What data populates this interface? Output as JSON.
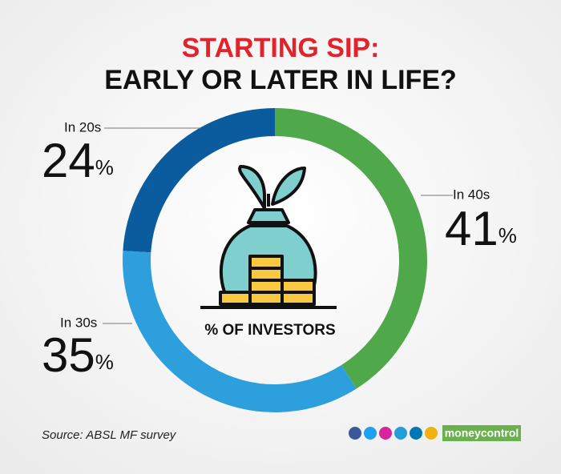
{
  "chart_data": {
    "type": "donut",
    "title": "STARTING SIP:",
    "subtitle": "EARLY OR LATER IN LIFE?",
    "categories": [
      "In 40s",
      "In 30s",
      "In 20s"
    ],
    "values": [
      41,
      35,
      24
    ],
    "value_labels": [
      "41%",
      "35%",
      "24%"
    ],
    "colors": [
      "#4fa84a",
      "#2e9fdd",
      "#0b5c9e"
    ],
    "center_label": "% OF INVESTORS",
    "source": "Source: ABSL MF survey",
    "brand": "moneycontrol"
  }
}
